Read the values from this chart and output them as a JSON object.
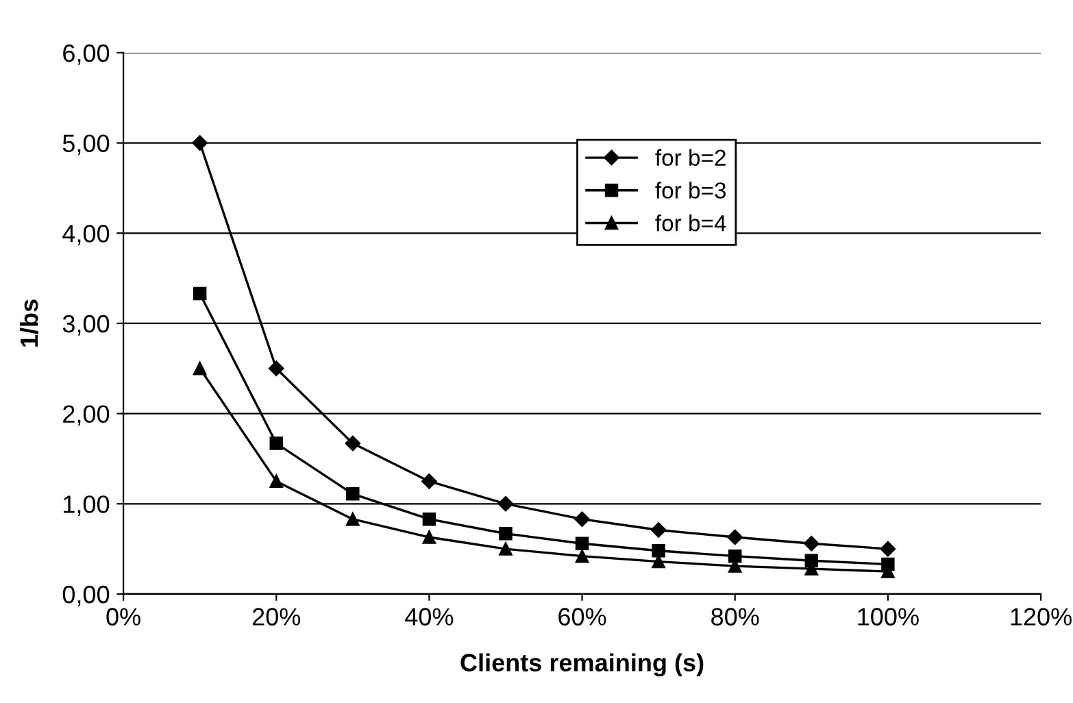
{
  "chart_data": {
    "type": "line",
    "xlabel": "Clients remaining (s)",
    "ylabel": "1/bs",
    "x": [
      10,
      20,
      30,
      40,
      50,
      60,
      70,
      80,
      90,
      100
    ],
    "series": [
      {
        "name": "for b=2",
        "color": "#000000",
        "marker": "diamond",
        "values": [
          5.0,
          2.5,
          1.67,
          1.25,
          1.0,
          0.83,
          0.71,
          0.63,
          0.56,
          0.5
        ]
      },
      {
        "name": "for b=3",
        "color": "#000000",
        "marker": "square",
        "values": [
          3.33,
          1.67,
          1.11,
          0.83,
          0.67,
          0.56,
          0.48,
          0.42,
          0.37,
          0.33
        ]
      },
      {
        "name": "for b=4",
        "color": "#000000",
        "marker": "triangle",
        "values": [
          2.5,
          1.25,
          0.83,
          0.63,
          0.5,
          0.42,
          0.36,
          0.31,
          0.28,
          0.25
        ]
      }
    ],
    "xlim": [
      0,
      120
    ],
    "xticks": [
      {
        "value": 0,
        "label": "0%"
      },
      {
        "value": 20,
        "label": "20%"
      },
      {
        "value": 40,
        "label": "40%"
      },
      {
        "value": 60,
        "label": "60%"
      },
      {
        "value": 80,
        "label": "80%"
      },
      {
        "value": 100,
        "label": "100%"
      },
      {
        "value": 120,
        "label": "120%"
      }
    ],
    "ylim": [
      0,
      6
    ],
    "yticks": [
      {
        "value": 0,
        "label": "0,00"
      },
      {
        "value": 1,
        "label": "1,00"
      },
      {
        "value": 2,
        "label": "2,00"
      },
      {
        "value": 3,
        "label": "3,00"
      },
      {
        "value": 4,
        "label": "4,00"
      },
      {
        "value": 5,
        "label": "5,00"
      },
      {
        "value": 6,
        "label": "6,00"
      }
    ],
    "grid": "y",
    "legend": "top right",
    "line_style": "solid"
  }
}
